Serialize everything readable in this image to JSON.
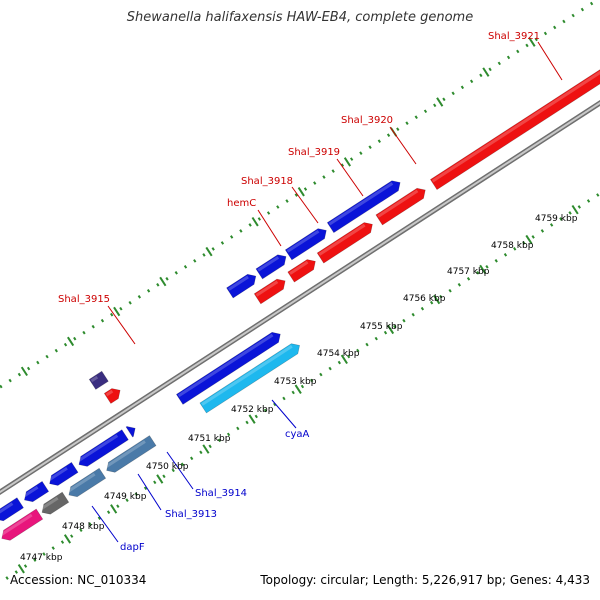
{
  "title": "Shewanella halifaxensis HAW-EB4, complete genome",
  "footer": {
    "accession": "Accession: NC_010334",
    "summary": "Topology: circular; Length: 5,226,917 bp; Genes: 4,433"
  },
  "colors": {
    "backbone": "#8c8c8c",
    "ticks": "#2e8b2e",
    "gene_blue": "#0a14d8",
    "gene_red": "#ee1111",
    "gene_cyan": "#1eb8ee",
    "gene_steel": "#4a7aa8",
    "gene_pink": "#e8157c",
    "gene_grey": "#666666",
    "gene_purple": "#3a2e80",
    "label_red": "#cc0000",
    "label_blue": "#0000cc"
  },
  "scale_labels": [
    "4747 kbp",
    "4748 kbp",
    "4749 kbp",
    "4750 kbp",
    "4751 kbp",
    "4752 kbp",
    "4753 kbp",
    "4754 kbp",
    "4755 kbp",
    "4756 kbp",
    "4757 kbp",
    "4758 kbp",
    "4759 kbp"
  ],
  "feature_labels": {
    "shal_3921": "Shal_3921",
    "shal_3920": "Shal_3920",
    "shal_3919": "Shal_3919",
    "shal_3918": "Shal_3918",
    "hemC": "hemC",
    "shal_3915": "Shal_3915",
    "cyaA": "cyaA",
    "shal_3914": "Shal_3914",
    "shal_3913": "Shal_3913",
    "dapF": "dapF"
  }
}
